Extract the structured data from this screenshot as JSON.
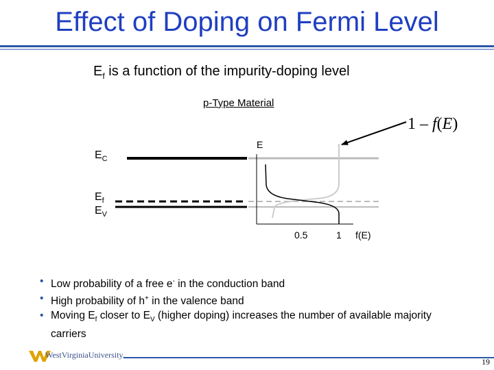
{
  "title": "Effect of Doping on Fermi Level",
  "subtitle": {
    "prefix": "E",
    "sub": "f",
    "rest": " is a function of the impurity-doping level"
  },
  "diagram": {
    "caption": "p-Type Material",
    "left_labels": {
      "ec": {
        "main": "E",
        "sub": "C"
      },
      "ef": {
        "main": "E",
        "sub": "f"
      },
      "ev": {
        "main": "E",
        "sub": "V"
      }
    },
    "axis": {
      "y_label": "E",
      "tick_half": "0.5",
      "tick_one": "1",
      "x_label": "f(E)"
    },
    "curve_label": {
      "prefix": "1 – ",
      "f": "f",
      "paren_open": "(",
      "E": "E",
      "paren_close": ")"
    },
    "colors": {
      "band_line": "#000000",
      "gray_line": "#bbbbbb",
      "light_curve": "#cccccc"
    }
  },
  "bullets": [
    {
      "parts": [
        "Low probability of a free e",
        "-",
        " in the conduction band"
      ]
    },
    {
      "parts": [
        "High probability of h",
        "+",
        " in the valence band"
      ]
    },
    {
      "parts": [
        "Moving E",
        "f",
        " closer to E",
        "V",
        " (higher doping) increases the number of available majority carriers"
      ]
    }
  ],
  "footer": {
    "logo_text": "WestVirginiaUniversity.",
    "page_number": "19"
  }
}
